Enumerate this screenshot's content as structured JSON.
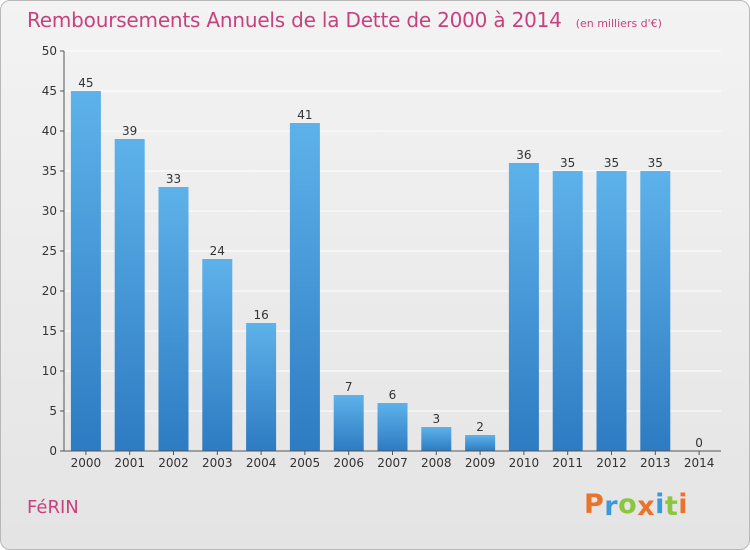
{
  "header": {
    "title": "Remboursements Annuels de la Dette de 2000 à 2014",
    "unit": "(en milliers d'€)"
  },
  "footer": {
    "commune": "FéRIN",
    "brand": "Proxiti",
    "brand_colors": [
      "#e8732a",
      "#3a9ad9",
      "#8cc63f",
      "#e8732a",
      "#3a9ad9",
      "#8cc63f",
      "#e8732a"
    ]
  },
  "colors": {
    "accent": "#c8417f",
    "bar_light": "#5eb2ea",
    "bar_dark": "#2d7bc2",
    "grid": "#ffffff",
    "axis": "#555555"
  },
  "chart_data": {
    "type": "bar",
    "title": "Remboursements Annuels de la Dette de 2000 à 2014",
    "categories": [
      "2000",
      "2001",
      "2002",
      "2003",
      "2004",
      "2005",
      "2006",
      "2007",
      "2008",
      "2009",
      "2010",
      "2011",
      "2012",
      "2013",
      "2014"
    ],
    "values": [
      45,
      39,
      33,
      24,
      16,
      41,
      7,
      6,
      3,
      2,
      36,
      35,
      35,
      35,
      0
    ],
    "data_labels": [
      "45",
      "39",
      "33",
      "24",
      "16",
      "41",
      "7",
      "6",
      "3",
      "2",
      "36",
      "35",
      "35",
      "35",
      "0"
    ],
    "ylim": [
      0,
      50
    ],
    "yticks": [
      0,
      5,
      10,
      15,
      20,
      25,
      30,
      35,
      40,
      45,
      50
    ],
    "ytick_labels": [
      "0",
      "5",
      "10",
      "15",
      "20",
      "25",
      "30",
      "35",
      "40",
      "45",
      "50"
    ],
    "grid": true,
    "xlabel": "",
    "ylabel": ""
  }
}
